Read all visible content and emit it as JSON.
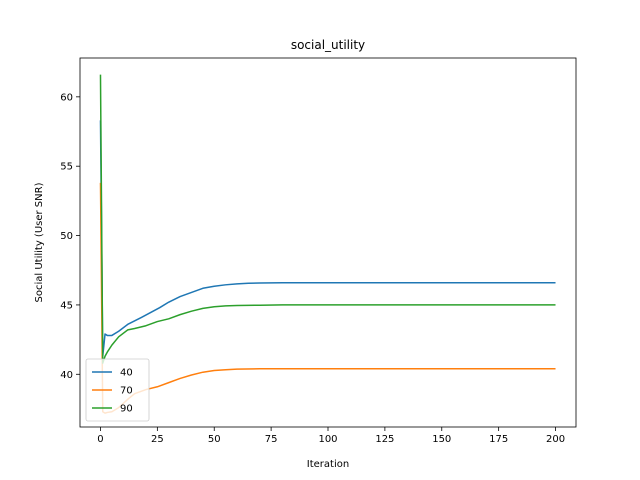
{
  "chart_data": {
    "type": "line",
    "title": "social_utility",
    "xlabel": "Iteration",
    "ylabel": "Social Utility (User SNR)",
    "xlim": [
      -9,
      209
    ],
    "ylim": [
      36.2,
      62.8
    ],
    "xticks": [
      0,
      25,
      50,
      75,
      100,
      125,
      150,
      175,
      200
    ],
    "yticks": [
      40,
      45,
      50,
      55,
      60
    ],
    "grid": false,
    "legend_position": "lower-left",
    "series": [
      {
        "name": "40",
        "color": "#1f77b4",
        "x": [
          0,
          1,
          2,
          3,
          5,
          8,
          12,
          18,
          26,
          30,
          35,
          40,
          45,
          50,
          55,
          60,
          65,
          70,
          80,
          90,
          100,
          125,
          150,
          175,
          200
        ],
        "y": [
          58.3,
          41.3,
          42.9,
          42.8,
          42.8,
          43.1,
          43.6,
          44.1,
          44.8,
          45.2,
          45.6,
          45.9,
          46.2,
          46.35,
          46.45,
          46.52,
          46.56,
          46.58,
          46.6,
          46.6,
          46.6,
          46.6,
          46.6,
          46.6,
          46.6
        ]
      },
      {
        "name": "70",
        "color": "#ff7f0e",
        "x": [
          0,
          1,
          2,
          3,
          5,
          8,
          10,
          12,
          15,
          20,
          25,
          30,
          35,
          40,
          45,
          50,
          55,
          60,
          70,
          80,
          100,
          125,
          150,
          175,
          200
        ],
        "y": [
          53.8,
          37.3,
          37.2,
          37.25,
          37.3,
          37.6,
          37.9,
          38.2,
          38.6,
          38.9,
          39.1,
          39.4,
          39.7,
          39.95,
          40.15,
          40.27,
          40.33,
          40.37,
          40.4,
          40.4,
          40.4,
          40.4,
          40.4,
          40.4,
          40.4
        ]
      },
      {
        "name": "90",
        "color": "#2ca02c",
        "x": [
          0,
          1,
          2,
          3,
          5,
          8,
          12,
          15,
          20,
          25,
          30,
          35,
          40,
          45,
          50,
          55,
          60,
          70,
          80,
          100,
          125,
          150,
          175,
          200
        ],
        "y": [
          61.6,
          40.8,
          41.3,
          41.6,
          42.1,
          42.7,
          43.2,
          43.3,
          43.5,
          43.8,
          44.0,
          44.3,
          44.55,
          44.75,
          44.87,
          44.93,
          44.96,
          44.98,
          45.0,
          45.0,
          45.0,
          45.0,
          45.0,
          45.0
        ]
      }
    ]
  }
}
